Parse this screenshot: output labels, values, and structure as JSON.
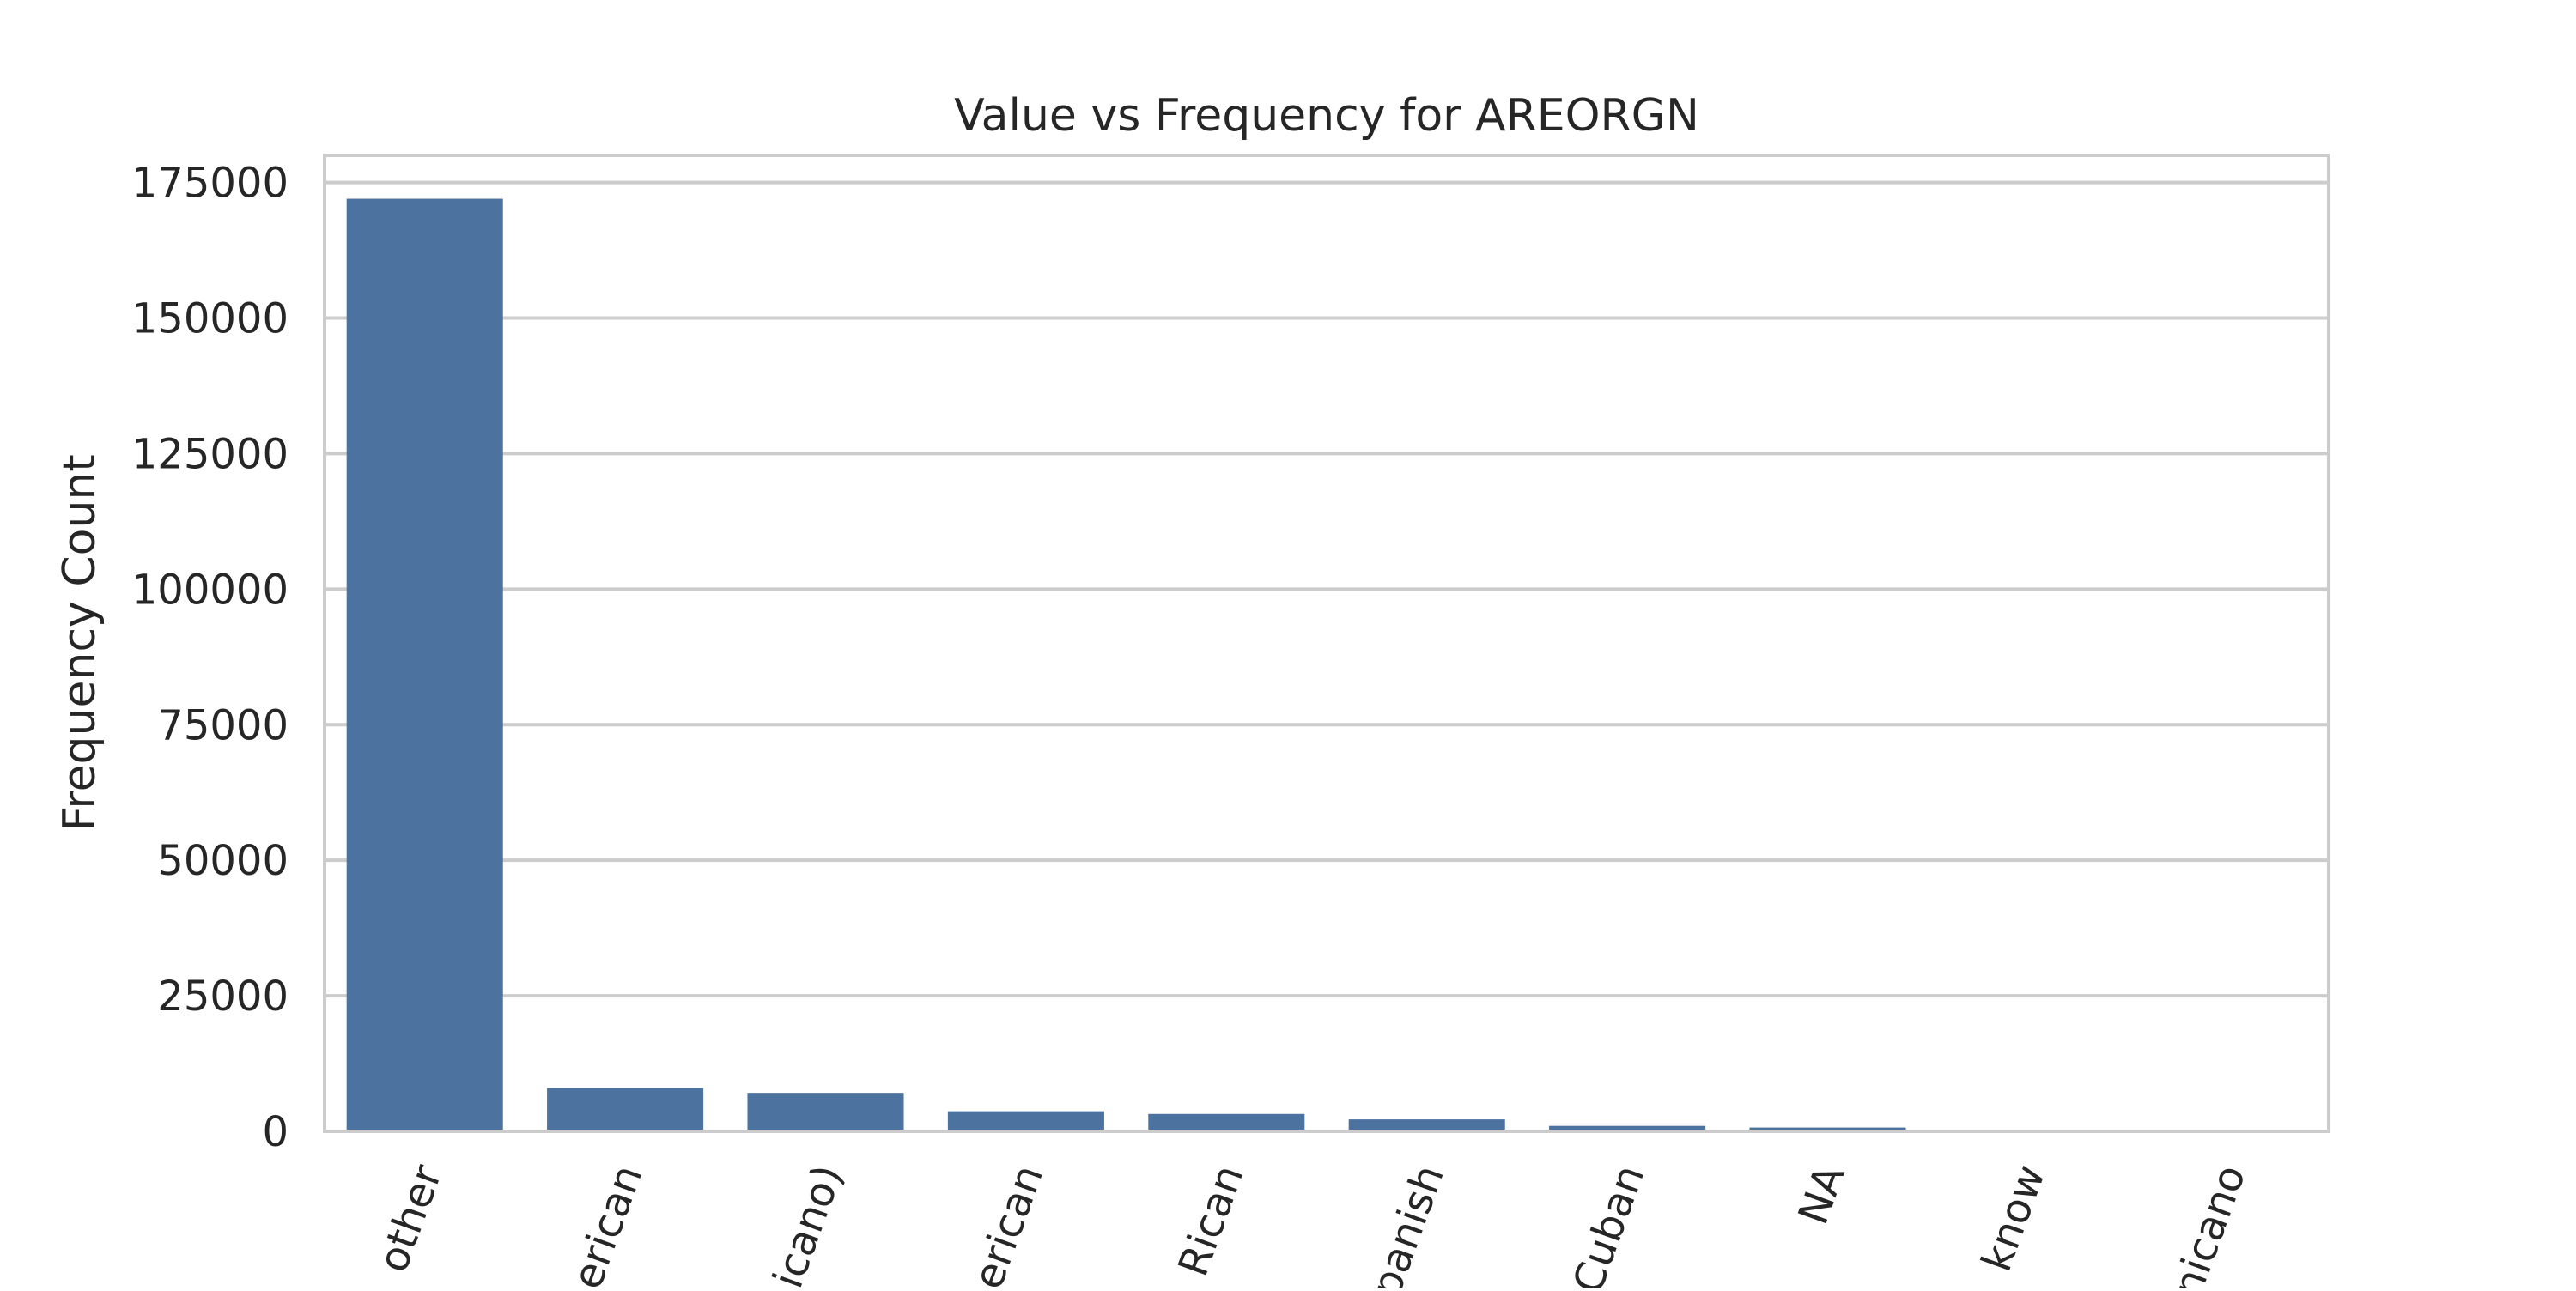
{
  "chart_data": {
    "type": "bar",
    "title": "Value vs Frequency for AREORGN",
    "xlabel": "",
    "ylabel": "Frequency Count",
    "categories": [
      "other",
      "erican",
      "icano)",
      "erican",
      "Rican",
      "panish",
      "Cuban",
      "NA",
      "know",
      "nicano"
    ],
    "values": [
      172000,
      8000,
      7100,
      3700,
      3200,
      2200,
      1000,
      700,
      150,
      100
    ],
    "ylim": [
      0,
      180000
    ],
    "yticks": [
      0,
      25000,
      50000,
      75000,
      100000,
      125000,
      150000,
      175000
    ],
    "ytick_labels": [
      "0",
      "25000",
      "50000",
      "75000",
      "100000",
      "125000",
      "150000",
      "175000"
    ],
    "grid": true,
    "bar_color": "#4c72a0",
    "grid_color": "#cccccc",
    "frame_color": "#cccccc"
  }
}
